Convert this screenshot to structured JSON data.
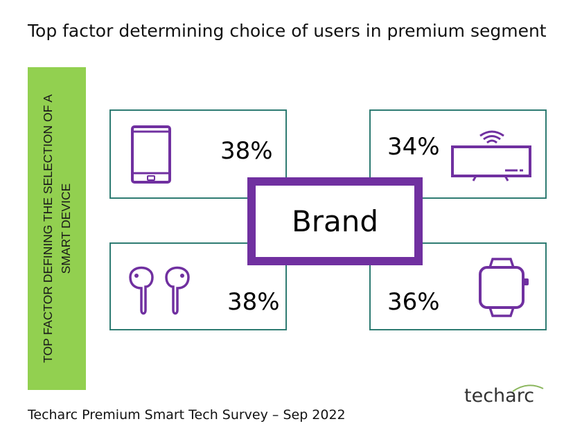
{
  "title": "Top factor determining choice of users in premium segment",
  "side_label": "TOP FACTOR DEFINING THE SELECTION OF A SMART DEVICE",
  "center_label": "Brand",
  "devices": [
    {
      "icon": "tablet-icon",
      "value": "38%"
    },
    {
      "icon": "smart-tv-icon",
      "value": "34%"
    },
    {
      "icon": "earbuds-icon",
      "value": "38%"
    },
    {
      "icon": "smartwatch-icon",
      "value": "36%"
    }
  ],
  "footer": "Techarc Premium Smart Tech Survey – Sep 2022",
  "logo": "techarc",
  "colors": {
    "accent": "#7030a0",
    "card_border": "#2e7b72",
    "side_bar": "#92d050"
  }
}
